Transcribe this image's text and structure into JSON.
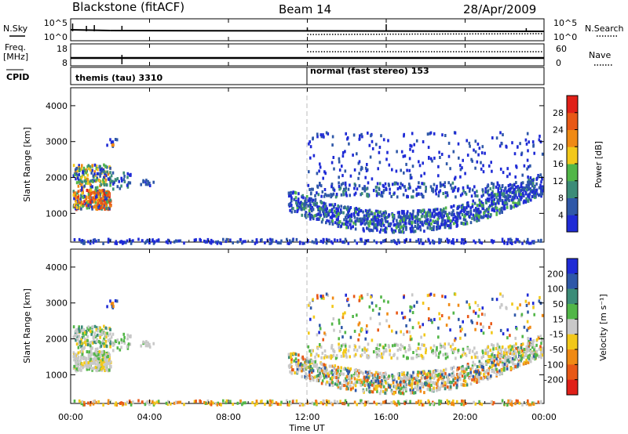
{
  "header": {
    "station": "Blackstone (fitACF)",
    "beam": "Beam 14",
    "date": "28/Apr/2009"
  },
  "summary_panels": {
    "nsky_label": "N.Sky",
    "nsearch_label": "N.Search",
    "freq_label_line1": "Freq.",
    "freq_label_line2": "[MHz]",
    "nave_label": "Nave",
    "cpid_label": "CPID",
    "left_top_ticks": [
      "10^5",
      "10^0"
    ],
    "right_top_ticks": [
      "10^5",
      "10^0"
    ],
    "freq_ticks": [
      "18",
      "8"
    ],
    "nave_ticks": [
      "60",
      "0"
    ],
    "cpid_segments": [
      {
        "label": "themis (tau) 3310",
        "start_hour": 0,
        "end_hour": 12
      },
      {
        "label": "normal (fast stereo) 153",
        "start_hour": 12,
        "end_hour": 24
      }
    ]
  },
  "chart_data": [
    {
      "type": "heatmap",
      "name": "power",
      "ylabel": "Slant Range [km]",
      "xlim": [
        0,
        24
      ],
      "ylim": [
        200,
        4500
      ],
      "yticks": [
        "1000",
        "2000",
        "3000",
        "4000"
      ],
      "colorbar_label": "Power [dB]",
      "colorbar_ticks": [
        "4",
        "8",
        "12",
        "16",
        "20",
        "24",
        "28"
      ],
      "colorbar_range": [
        0,
        32
      ],
      "colors": [
        "#1f2bd6",
        "#2f58a8",
        "#3c8c78",
        "#52b648",
        "#f2c81a",
        "#f08a14",
        "#e85816",
        "#e02018"
      ]
    },
    {
      "type": "heatmap",
      "name": "velocity",
      "ylabel": "Slant Range [km]",
      "xlabel": "Time UT",
      "xlim": [
        0,
        24
      ],
      "ylim": [
        200,
        4500
      ],
      "yticks": [
        "1000",
        "2000",
        "3000",
        "4000"
      ],
      "xticks": [
        "00:00",
        "04:00",
        "08:00",
        "12:00",
        "16:00",
        "20:00",
        "00:00"
      ],
      "colorbar_label": "Velocity [m s⁻¹]",
      "colorbar_ticks": [
        "200",
        "100",
        "50",
        "15",
        "-15",
        "-50",
        "-100",
        "-200"
      ],
      "colors": [
        "#1f2bd6",
        "#2f58a8",
        "#3c8c78",
        "#52b648",
        "#c8c8c8",
        "#f2c81a",
        "#f08a14",
        "#e85816",
        "#e02018"
      ]
    }
  ]
}
